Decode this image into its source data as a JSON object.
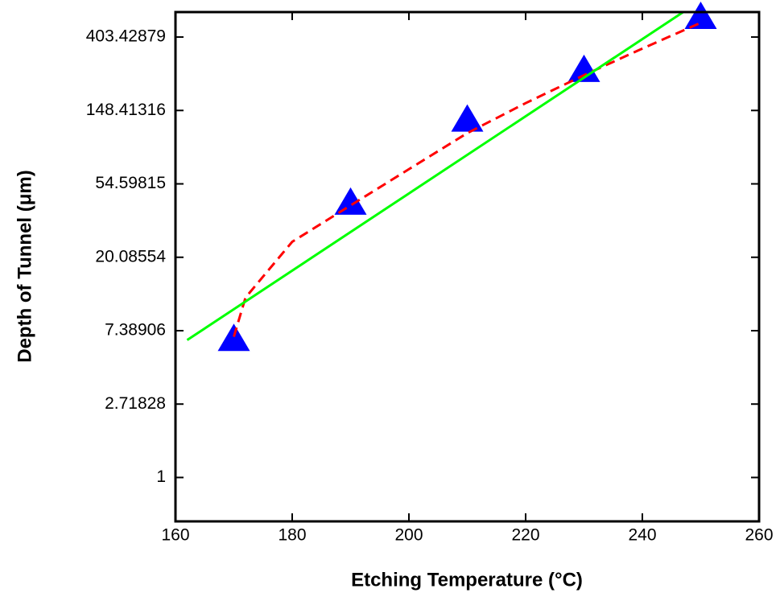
{
  "chart_data": {
    "type": "scatter",
    "xlabel": "Etching Temperature (°C)",
    "ylabel": "Depth of Tunnel (μm)",
    "xlim": [
      160,
      260
    ],
    "xticks": [
      160,
      180,
      200,
      220,
      240,
      260
    ],
    "ylim": [
      0.55,
      567
    ],
    "yticks": [
      1,
      2.71828,
      7.38906,
      20.08554,
      54.59815,
      148.41316,
      403.42879
    ],
    "log_y": true,
    "grid": false,
    "series": [
      {
        "type": "scatter",
        "marker": "triangle",
        "color": "#0000ff",
        "x": [
          170,
          190,
          210,
          230,
          250
        ],
        "values": [
          6.5,
          41.6,
          129,
          254,
          523
        ]
      },
      {
        "type": "line",
        "dash": true,
        "color": "#ff0000",
        "x": [
          170,
          172,
          180,
          190,
          200,
          210,
          220,
          230,
          240,
          250
        ],
        "values": [
          6.8,
          11.6,
          24.8,
          40.7,
          66.7,
          109,
          164,
          240,
          345,
          490
        ]
      },
      {
        "type": "line",
        "dash": false,
        "color": "#00ff00",
        "x": [
          162,
          247
        ],
        "values": [
          6.5,
          567
        ]
      }
    ]
  }
}
